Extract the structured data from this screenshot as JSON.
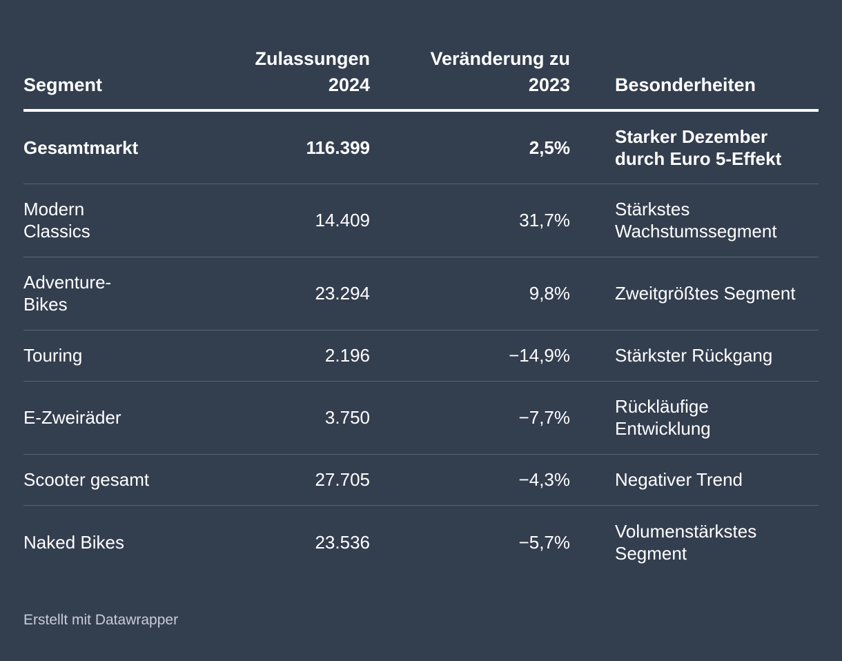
{
  "table": {
    "headers": {
      "segment": "Segment",
      "registrations_line1": "Zulassungen",
      "registrations_line2": "2024",
      "change_line1": "Veränderung zu",
      "change_line2": "2023",
      "notes": "Besonderheiten"
    },
    "rows": [
      {
        "segment_l1": "Gesamtmarkt",
        "segment_l2": "",
        "value": "116.399",
        "change": "2,5%",
        "note_l1": "Starker Dezember",
        "note_l2": "durch Euro 5-Effekt"
      },
      {
        "segment_l1": "Modern",
        "segment_l2": "Classics",
        "value": "14.409",
        "change": "31,7%",
        "note_l1": "Stärkstes",
        "note_l2": "Wachstumssegment"
      },
      {
        "segment_l1": "Adventure-",
        "segment_l2": "Bikes",
        "value": "23.294",
        "change": "9,8%",
        "note_l1": "Zweitgrößtes Segment",
        "note_l2": ""
      },
      {
        "segment_l1": "Touring",
        "segment_l2": "",
        "value": "2.196",
        "change": "−14,9%",
        "note_l1": "Stärkster Rückgang",
        "note_l2": ""
      },
      {
        "segment_l1": "E-Zweiräder",
        "segment_l2": "",
        "value": "3.750",
        "change": "−7,7%",
        "note_l1": "Rückläufige",
        "note_l2": "Entwicklung"
      },
      {
        "segment_l1": "Scooter gesamt",
        "segment_l2": "",
        "value": "27.705",
        "change": "−4,3%",
        "note_l1": "Negativer Trend",
        "note_l2": ""
      },
      {
        "segment_l1": "Naked Bikes",
        "segment_l2": "",
        "value": "23.536",
        "change": "−5,7%",
        "note_l1": "Volumenstärkstes",
        "note_l2": "Segment"
      }
    ]
  },
  "footer": "Erstellt mit Datawrapper",
  "chart_data": {
    "type": "table",
    "columns": [
      "Segment",
      "Zulassungen 2024",
      "Veränderung zu 2023",
      "Besonderheiten"
    ],
    "rows": [
      [
        "Gesamtmarkt",
        116399,
        2.5,
        "Starker Dezember durch Euro 5-Effekt"
      ],
      [
        "Modern Classics",
        14409,
        31.7,
        "Stärkstes Wachstumssegment"
      ],
      [
        "Adventure-Bikes",
        23294,
        9.8,
        "Zweitgrößtes Segment"
      ],
      [
        "Touring",
        2196,
        -14.9,
        "Stärkster Rückgang"
      ],
      [
        "E-Zweiräder",
        3750,
        -7.7,
        "Rückläufige Entwicklung"
      ],
      [
        "Scooter gesamt",
        27705,
        -4.3,
        "Negativer Trend"
      ],
      [
        "Naked Bikes",
        23536,
        -5.7,
        "Volumenstärkstes Segment"
      ]
    ]
  }
}
